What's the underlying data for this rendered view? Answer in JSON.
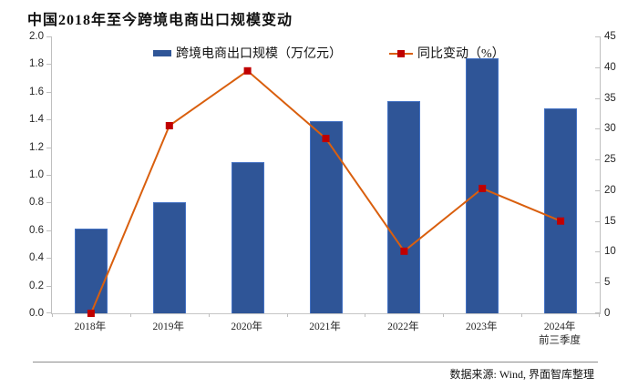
{
  "title": "中国2018年至今跨境电商出口规模变动",
  "legend": [
    {
      "label": "跨境电商出口规模（万亿元）",
      "type": "bar",
      "color": "#2F5597"
    },
    {
      "label": "同比变动（%）",
      "type": "line",
      "color": "#D95F0E",
      "marker_color": "#C00000"
    }
  ],
  "source_note": "数据来源: Wind, 界面智库整理",
  "chart_data": {
    "type": "bar+line",
    "categories": [
      "2018年",
      "2019年",
      "2020年",
      "2021年",
      "2022年",
      "2023年",
      "2024年\n前三季度"
    ],
    "series": [
      {
        "name": "跨境电商出口规模（万亿元）",
        "type": "bar",
        "axis": "left",
        "color": "#2F5597",
        "values": [
          0.61,
          0.8,
          1.09,
          1.39,
          1.53,
          1.84,
          1.48
        ]
      },
      {
        "name": "同比变动（%）",
        "type": "line",
        "axis": "right",
        "color": "#D95F0E",
        "marker": "square",
        "marker_color": "#C00000",
        "values": [
          0,
          30.5,
          39.4,
          28.4,
          10.1,
          20.3,
          15.0
        ]
      }
    ],
    "left_axis": {
      "min": 0,
      "max": 2.0,
      "step": 0.2,
      "tick_labels": [
        "0.0",
        "0.2",
        "0.4",
        "0.6",
        "0.8",
        "1.0",
        "1.2",
        "1.4",
        "1.6",
        "1.8",
        "2.0"
      ]
    },
    "right_axis": {
      "min": 0,
      "max": 45,
      "step": 5,
      "tick_labels": [
        "0",
        "5",
        "10",
        "15",
        "20",
        "25",
        "30",
        "35",
        "40",
        "45"
      ]
    },
    "grid": false,
    "legend_position": "top-inside"
  }
}
